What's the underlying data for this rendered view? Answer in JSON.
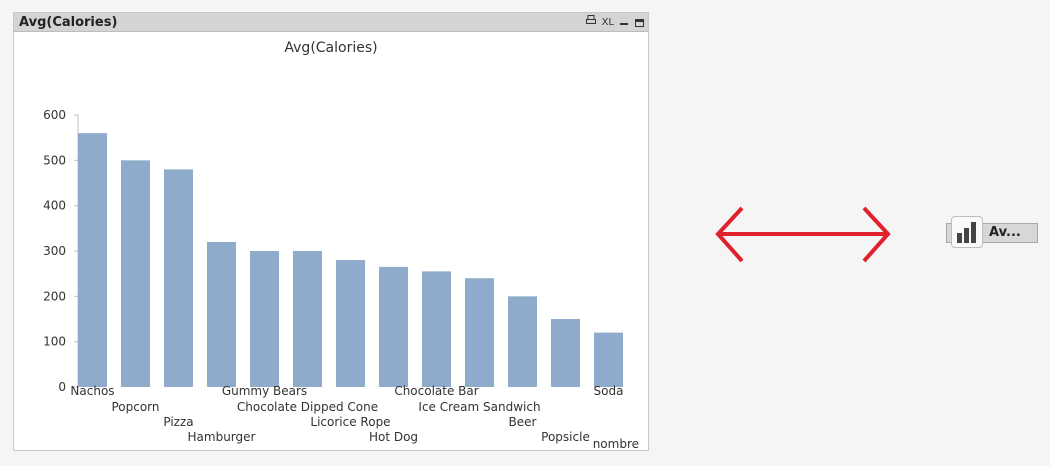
{
  "window": {
    "caption": "Avg(Calories)",
    "xl_label": "XL",
    "icons": [
      "print-icon",
      "xl-icon",
      "minimize-icon",
      "maximize-icon"
    ]
  },
  "minimized": {
    "label": "Av...",
    "icon": "bar-chart-icon"
  },
  "arrow": {
    "icon": "double-headed-arrow-icon",
    "color": "#e0202a"
  },
  "colors": {
    "bar": "#8eabcb",
    "axis": "#c0c0c0",
    "text": "#333333"
  },
  "chart_data": {
    "type": "bar",
    "title": "Avg(Calories)",
    "xlabel": "nombre",
    "ylabel": "",
    "ylim": [
      0,
      600
    ],
    "yticks": [
      "0",
      "100",
      "200",
      "300",
      "400",
      "500",
      "600"
    ],
    "grid": false,
    "categories": [
      "Nachos",
      "Popcorn",
      "Pizza",
      "Hamburger",
      "Gummy Bears",
      "Chocolate Dipped Cone",
      "Licorice Rope",
      "Hot Dog",
      "Chocolate Bar",
      "Ice Cream Sandwich",
      "Beer",
      "Popsicle",
      "Soda"
    ],
    "values": [
      560,
      500,
      480,
      320,
      300,
      300,
      280,
      265,
      255,
      240,
      200,
      150,
      120
    ]
  }
}
